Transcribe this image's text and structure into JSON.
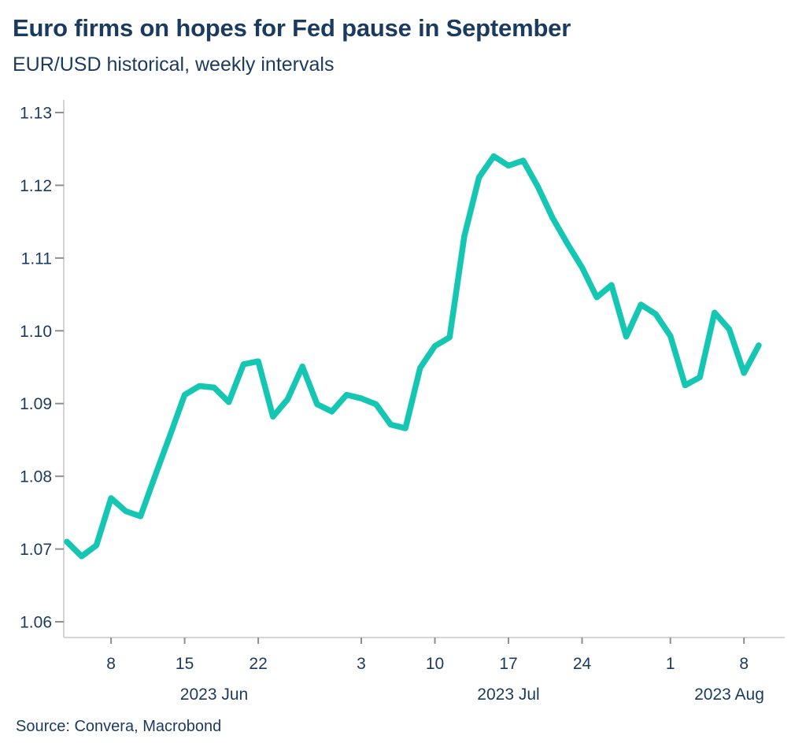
{
  "header": {
    "title": "Euro firms on hopes for Fed pause in September",
    "subtitle": "EUR/USD historical, weekly intervals"
  },
  "footer": {
    "source": "Source: Convera, Macrobond"
  },
  "colors": {
    "line_teal": "#15C7B2",
    "text_navy": "#1B3A5F",
    "axis_gray": "#C9C9C9",
    "tick_gray": "#8E8E8E"
  },
  "chart_data": {
    "type": "line",
    "title": "Euro firms on hopes for Fed pause in September",
    "subtitle": "EUR/USD historical, weekly intervals",
    "source": "Source: Convera, Macrobond",
    "xlabel": "",
    "ylabel": "",
    "grid": false,
    "legend_position": "none",
    "ylim": [
      1.0578,
      1.1317
    ],
    "y_ticks": [
      1.13,
      1.12,
      1.11,
      1.1,
      1.09,
      1.08,
      1.07,
      1.06
    ],
    "x": [
      "Jun 5",
      "Jun 6",
      "Jun 7",
      "Jun 8",
      "Jun 9",
      "Jun 12",
      "Jun 13",
      "Jun 14",
      "Jun 15",
      "Jun 16",
      "Jun 19",
      "Jun 20",
      "Jun 21",
      "Jun 22",
      "Jun 23",
      "Jun 26",
      "Jun 27",
      "Jun 28",
      "Jun 29",
      "Jun 30",
      "Jul 3",
      "Jul 4",
      "Jul 5",
      "Jul 6",
      "Jul 7",
      "Jul 10",
      "Jul 11",
      "Jul 12",
      "Jul 13",
      "Jul 14",
      "Jul 17",
      "Jul 18",
      "Jul 19",
      "Jul 20",
      "Jul 21",
      "Jul 24",
      "Jul 25",
      "Jul 26",
      "Jul 27",
      "Jul 28",
      "Jul 31",
      "Aug 1",
      "Aug 2",
      "Aug 3",
      "Aug 4",
      "Aug 7",
      "Aug 8",
      "Aug 9"
    ],
    "series": [
      {
        "name": "EUR/USD",
        "color": "#15C7B2",
        "values": [
          1.071,
          1.069,
          1.0705,
          1.077,
          1.0752,
          1.0745,
          1.0801,
          1.0856,
          1.0912,
          1.0924,
          1.0922,
          1.0902,
          1.0954,
          1.0958,
          1.0882,
          1.0906,
          1.0951,
          1.0899,
          1.0889,
          1.0912,
          1.0907,
          1.0899,
          1.0871,
          1.0866,
          1.0949,
          1.0979,
          1.0991,
          1.113,
          1.1211,
          1.124,
          1.1227,
          1.1234,
          1.1198,
          1.1155,
          1.112,
          1.1087,
          1.1046,
          1.1063,
          1.0992,
          1.1036,
          1.1023,
          1.0993,
          1.0925,
          1.0936,
          1.1025,
          1.1002,
          1.0942,
          1.098
        ]
      }
    ],
    "x_ticks": [
      {
        "label": "8",
        "index": 3
      },
      {
        "label": "15",
        "index": 8
      },
      {
        "label": "22",
        "index": 13
      },
      {
        "label": "3",
        "index": 20
      },
      {
        "label": "10",
        "index": 25
      },
      {
        "label": "17",
        "index": 30
      },
      {
        "label": "24",
        "index": 35
      },
      {
        "label": "1",
        "index": 41
      },
      {
        "label": "8",
        "index": 46
      }
    ],
    "month_labels": [
      {
        "label": "2023 Jun",
        "index": 10
      },
      {
        "label": "2023 Jul",
        "index": 30
      },
      {
        "label": "2023 Aug",
        "index": 45
      }
    ]
  }
}
